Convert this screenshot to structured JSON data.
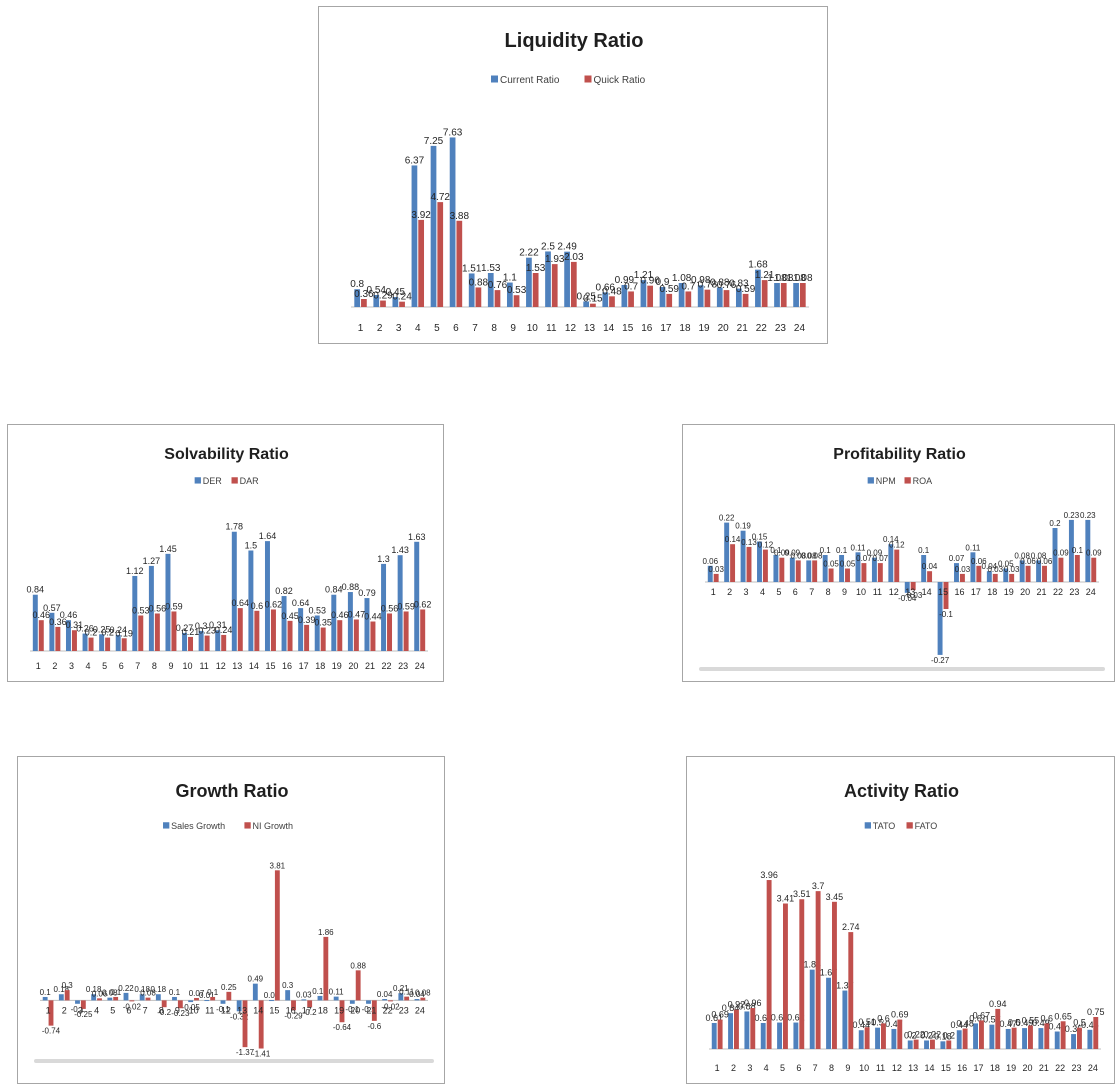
{
  "colors": {
    "series1": "#4f81bd",
    "series2": "#c0504d"
  },
  "chart_data": [
    {
      "type": "bar",
      "title": "Liquidity Ratio",
      "categories": [
        "1",
        "2",
        "3",
        "4",
        "5",
        "6",
        "7",
        "8",
        "9",
        "10",
        "11",
        "12",
        "13",
        "14",
        "15",
        "16",
        "17",
        "18",
        "19",
        "20",
        "21",
        "22",
        "23",
        "24"
      ],
      "series": [
        {
          "name": "Current Ratio",
          "values": [
            0.8,
            0.54,
            0.45,
            6.37,
            7.25,
            7.63,
            1.51,
            1.53,
            1.1,
            2.22,
            2.5,
            2.49,
            0.25,
            0.66,
            0.99,
            1.21,
            0.9,
            1.08,
            0.98,
            0.88,
            0.83,
            1.68,
            1.08,
            1.08
          ]
        },
        {
          "name": "Quick Ratio",
          "values": [
            0.36,
            0.29,
            0.24,
            3.92,
            4.72,
            3.88,
            0.88,
            0.76,
            0.53,
            1.53,
            1.93,
            2.03,
            0.15,
            0.48,
            0.7,
            0.96,
            0.59,
            0.7,
            0.78,
            0.76,
            0.59,
            1.21,
            1.08,
            1.08
          ]
        }
      ],
      "ylim": [
        0,
        9
      ],
      "grid": false,
      "legend": "top"
    },
    {
      "type": "bar",
      "title": "Solvability Ratio",
      "categories": [
        "1",
        "2",
        "3",
        "4",
        "5",
        "6",
        "7",
        "8",
        "9",
        "10",
        "11",
        "12",
        "13",
        "14",
        "15",
        "16",
        "17",
        "18",
        "19",
        "20",
        "21",
        "22",
        "23",
        "24"
      ],
      "series": [
        {
          "name": "DER",
          "values": [
            0.84,
            0.57,
            0.46,
            0.26,
            0.25,
            0.24,
            1.12,
            1.27,
            1.45,
            0.27,
            0.3,
            0.31,
            1.78,
            1.5,
            1.64,
            0.82,
            0.64,
            0.53,
            0.84,
            0.88,
            0.79,
            1.3,
            1.43,
            1.63
          ]
        },
        {
          "name": "DAR",
          "values": [
            0.46,
            0.36,
            0.31,
            0.2,
            0.2,
            0.19,
            0.53,
            0.56,
            0.59,
            0.21,
            0.23,
            0.24,
            0.64,
            0.6,
            0.62,
            0.45,
            0.39,
            0.35,
            0.46,
            0.47,
            0.44,
            0.56,
            0.59,
            0.62
          ]
        }
      ],
      "ylim": [
        0,
        2
      ],
      "grid": false,
      "legend": "top"
    },
    {
      "type": "bar",
      "title": "Profitability Ratio",
      "categories": [
        "1",
        "2",
        "3",
        "4",
        "5",
        "6",
        "7",
        "8",
        "9",
        "10",
        "11",
        "12",
        "13",
        "14",
        "15",
        "16",
        "17",
        "18",
        "19",
        "20",
        "21",
        "22",
        "23",
        "24"
      ],
      "series": [
        {
          "name": "NPM",
          "values": [
            0.06,
            0.22,
            0.19,
            0.15,
            0.1,
            0.09,
            0.08,
            0.1,
            0.1,
            0.11,
            0.09,
            0.14,
            -0.04,
            0.1,
            -0.27,
            0.07,
            0.11,
            0.04,
            0.05,
            0.08,
            0.08,
            0.2,
            0.23,
            0.23
          ]
        },
        {
          "name": "ROA",
          "values": [
            0.03,
            0.14,
            0.13,
            0.12,
            0.09,
            0.08,
            0.08,
            0.05,
            0.05,
            0.07,
            0.07,
            0.12,
            -0.03,
            0.04,
            -0.1,
            0.03,
            0.06,
            0.03,
            0.03,
            0.06,
            0.06,
            0.09,
            0.1,
            0.09
          ]
        }
      ],
      "ylim": [
        -0.3,
        0.3
      ],
      "grid": false,
      "legend": "top"
    },
    {
      "type": "bar",
      "title": "Growth Ratio",
      "categories": [
        "1",
        "2",
        "3",
        "4",
        "5",
        "6",
        "7",
        "8",
        "9",
        "10",
        "11",
        "12",
        "13",
        "14",
        "15",
        "16",
        "17",
        "18",
        "19",
        "20",
        "21",
        "22",
        "23",
        "24"
      ],
      "series": [
        {
          "name": "Sales Growth",
          "values": [
            0.1,
            0.18,
            -0.1,
            0.18,
            0.08,
            0.22,
            0.18,
            0.18,
            0.1,
            -0.05,
            0.01,
            -0.1,
            -0.32,
            0.49,
            0.01,
            0.3,
            0.03,
            0.13,
            0.11,
            -0.1,
            -0.1,
            0.04,
            0.21,
            0.04
          ]
        },
        {
          "name": "NI Growth",
          "values": [
            -0.74,
            0.3,
            -0.25,
            0.06,
            0.1,
            -0.02,
            0.08,
            -0.2,
            -0.23,
            0.07,
            0.1,
            0.25,
            -1.37,
            -1.41,
            3.81,
            -0.29,
            -0.2,
            1.86,
            -0.64,
            0.88,
            -0.6,
            -0.02,
            0.11,
            0.08
          ]
        }
      ],
      "ylim": [
        -1.6,
        4.2
      ],
      "grid": false,
      "legend": "top"
    },
    {
      "type": "bar",
      "title": "Activity Ratio",
      "categories": [
        "1",
        "2",
        "3",
        "4",
        "5",
        "6",
        "7",
        "8",
        "9",
        "10",
        "11",
        "12",
        "13",
        "14",
        "15",
        "16",
        "17",
        "18",
        "19",
        "20",
        "21",
        "22",
        "23",
        "24"
      ],
      "series": [
        {
          "name": "TATO",
          "values": [
            0.61,
            0.84,
            0.88,
            0.61,
            0.62,
            0.62,
            1.86,
            1.67,
            1.37,
            0.44,
            0.5,
            0.47,
            0.2,
            0.2,
            0.18,
            0.44,
            0.6,
            0.57,
            0.47,
            0.49,
            0.49,
            0.41,
            0.35,
            0.45
          ]
        },
        {
          "name": "FATO",
          "values": [
            0.69,
            0.92,
            0.96,
            3.96,
            3.41,
            3.51,
            3.7,
            3.45,
            2.74,
            0.51,
            0.6,
            0.69,
            0.22,
            0.22,
            0.2,
            0.48,
            0.67,
            0.94,
            0.5,
            0.55,
            0.6,
            0.65,
            0.5,
            0.75
          ]
        }
      ],
      "ylim": [
        0,
        4.5
      ],
      "grid": false,
      "legend": "top"
    }
  ]
}
